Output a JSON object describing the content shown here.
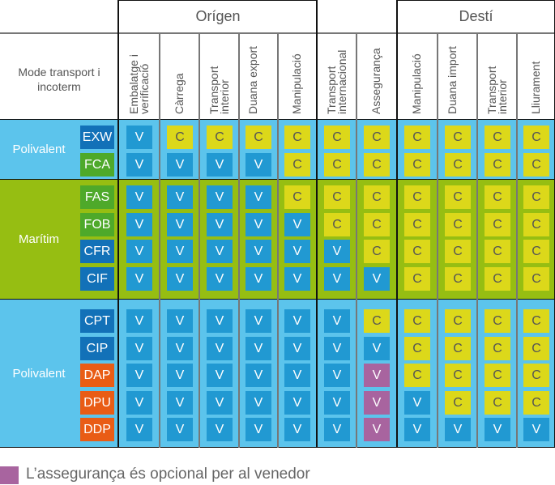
{
  "header": {
    "corner_label": "Mode transport i incoterm",
    "origin_label": "Orígen",
    "destination_label": "Destí",
    "columns": [
      "Embalatge i verificació",
      "Càrrega",
      "Transport interior",
      "Duana export",
      "Manipulació",
      "Transport internacional",
      "Assegurança",
      "Manipulació",
      "Duana import",
      "Transport interior",
      "Lliurament"
    ]
  },
  "colors": {
    "polivalent_bg": "#5cc4ec",
    "maritim_bg": "#96be12",
    "V": "#2199d2",
    "C": "#dcd81a",
    "P": "#a8649f",
    "badge_blue": "#1271b8",
    "badge_green": "#4ea92a",
    "badge_orange": "#e95c15"
  },
  "groups": [
    {
      "label": "Polivalent",
      "bg": "polivalent_bg",
      "rows": [
        {
          "term": "EXW",
          "badge": "badge_blue",
          "cells": [
            "V",
            "C",
            "C",
            "C",
            "C",
            "C",
            "C",
            "C",
            "C",
            "C",
            "C"
          ]
        },
        {
          "term": "FCA",
          "badge": "badge_green",
          "cells": [
            "V",
            "V",
            "V",
            "V",
            "C",
            "C",
            "C",
            "C",
            "C",
            "C",
            "C"
          ]
        }
      ]
    },
    {
      "label": "Marítim",
      "bg": "maritim_bg",
      "rows": [
        {
          "term": "FAS",
          "badge": "badge_green",
          "cells": [
            "V",
            "V",
            "V",
            "V",
            "C",
            "C",
            "C",
            "C",
            "C",
            "C",
            "C"
          ]
        },
        {
          "term": "FOB",
          "badge": "badge_green",
          "cells": [
            "V",
            "V",
            "V",
            "V",
            "V",
            "C",
            "C",
            "C",
            "C",
            "C",
            "C"
          ]
        },
        {
          "term": "CFR",
          "badge": "badge_blue",
          "cells": [
            "V",
            "V",
            "V",
            "V",
            "V",
            "V",
            "C",
            "C",
            "C",
            "C",
            "C"
          ]
        },
        {
          "term": "CIF",
          "badge": "badge_blue",
          "cells": [
            "V",
            "V",
            "V",
            "V",
            "V",
            "V",
            "V",
            "C",
            "C",
            "C",
            "C"
          ]
        }
      ]
    },
    {
      "label": "Polivalent",
      "bg": "polivalent_bg",
      "rows": [
        {
          "term": "CPT",
          "badge": "badge_blue",
          "cells": [
            "V",
            "V",
            "V",
            "V",
            "V",
            "V",
            "C",
            "C",
            "C",
            "C",
            "C"
          ]
        },
        {
          "term": "CIP",
          "badge": "badge_blue",
          "cells": [
            "V",
            "V",
            "V",
            "V",
            "V",
            "V",
            "V",
            "C",
            "C",
            "C",
            "C"
          ]
        },
        {
          "term": "DAP",
          "badge": "badge_orange",
          "cells": [
            "V",
            "V",
            "V",
            "V",
            "V",
            "V",
            "V",
            "C",
            "C",
            "C",
            "C"
          ],
          "optional": [
            6
          ]
        },
        {
          "term": "DPU",
          "badge": "badge_orange",
          "cells": [
            "V",
            "V",
            "V",
            "V",
            "V",
            "V",
            "V",
            "V",
            "C",
            "C",
            "C"
          ],
          "optional": [
            6
          ]
        },
        {
          "term": "DDP",
          "badge": "badge_orange",
          "cells": [
            "V",
            "V",
            "V",
            "V",
            "V",
            "V",
            "V",
            "V",
            "V",
            "V",
            "V"
          ],
          "optional": [
            6
          ]
        }
      ]
    }
  ],
  "legend": {
    "text": "L’assegurança és opcional per al venedor",
    "color": "P"
  }
}
